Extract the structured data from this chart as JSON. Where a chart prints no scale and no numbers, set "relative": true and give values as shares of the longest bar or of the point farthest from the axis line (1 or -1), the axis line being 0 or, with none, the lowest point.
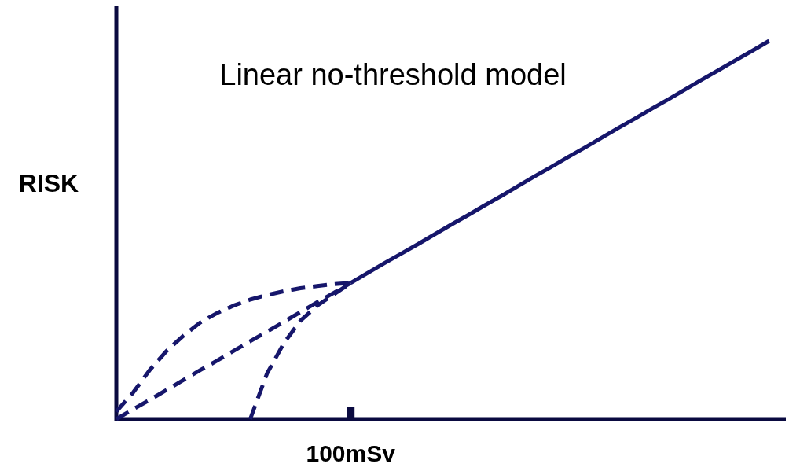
{
  "chart_data": {
    "type": "line",
    "title": "Linear no-threshold model",
    "ylabel": "RISK",
    "relative": true,
    "marker": "none",
    "annotations": [
      "100mSv"
    ],
    "categories": [
      null,
      null,
      null,
      null,
      null,
      null,
      null,
      null,
      null,
      null,
      null,
      null,
      null,
      null,
      null,
      null,
      null,
      null,
      null,
      null,
      null,
      null,
      null,
      null,
      null,
      null,
      null,
      null,
      null,
      null,
      null,
      null,
      null,
      null,
      null,
      null,
      null,
      null,
      null,
      null,
      null
    ],
    "series": [
      {
        "color": "#16166b",
        "line_style": "solid",
        "values": [
          null,
          null,
          null,
          null,
          null,
          null,
          null,
          null,
          null,
          null,
          null,
          null,
          null,
          null,
          0.36,
          0.386,
          0.412,
          0.437,
          0.462,
          0.488,
          0.514,
          0.539,
          0.565,
          0.59,
          0.616,
          0.642,
          0.667,
          0.693,
          0.718,
          0.744,
          0.77,
          0.795,
          0.821,
          0.846,
          0.872,
          0.898,
          0.923,
          0.949,
          0.974,
          1,
          null
        ]
      },
      {
        "color": "#16166b",
        "line_style": "dashed",
        "values": [
          0,
          0.026,
          0.051,
          0.077,
          0.103,
          0.129,
          0.154,
          0.18,
          0.206,
          0.231,
          0.257,
          0.283,
          0.309,
          0.334,
          0.36,
          null,
          null,
          null,
          null,
          null,
          null,
          null,
          null,
          null,
          null,
          null,
          null,
          null,
          null,
          null,
          null,
          null,
          null,
          null,
          null,
          null,
          null,
          null,
          null,
          null,
          null
        ]
      },
      {
        "color": "#16166b",
        "line_style": "dashed",
        "values": [
          0.02,
          0.07,
          0.13,
          0.18,
          0.22,
          0.255,
          0.28,
          0.3,
          0.316,
          0.328,
          0.338,
          0.346,
          0.352,
          0.357,
          0.36,
          null,
          null,
          null,
          null,
          null,
          null,
          null,
          null,
          null,
          null,
          null,
          null,
          null,
          null,
          null,
          null,
          null,
          null,
          null,
          null,
          null,
          null,
          null,
          null,
          null,
          null
        ]
      },
      {
        "color": "#16166b",
        "line_style": "dashed",
        "values": [
          null,
          null,
          null,
          null,
          null,
          null,
          null,
          null,
          0,
          0.12,
          0.2,
          0.26,
          0.3,
          0.33,
          0.36,
          null,
          null,
          null,
          null,
          null,
          null,
          null,
          null,
          null,
          null,
          null,
          null,
          null,
          null,
          null,
          null,
          null,
          null,
          null,
          null,
          null,
          null,
          null,
          null,
          null,
          null
        ]
      }
    ]
  }
}
